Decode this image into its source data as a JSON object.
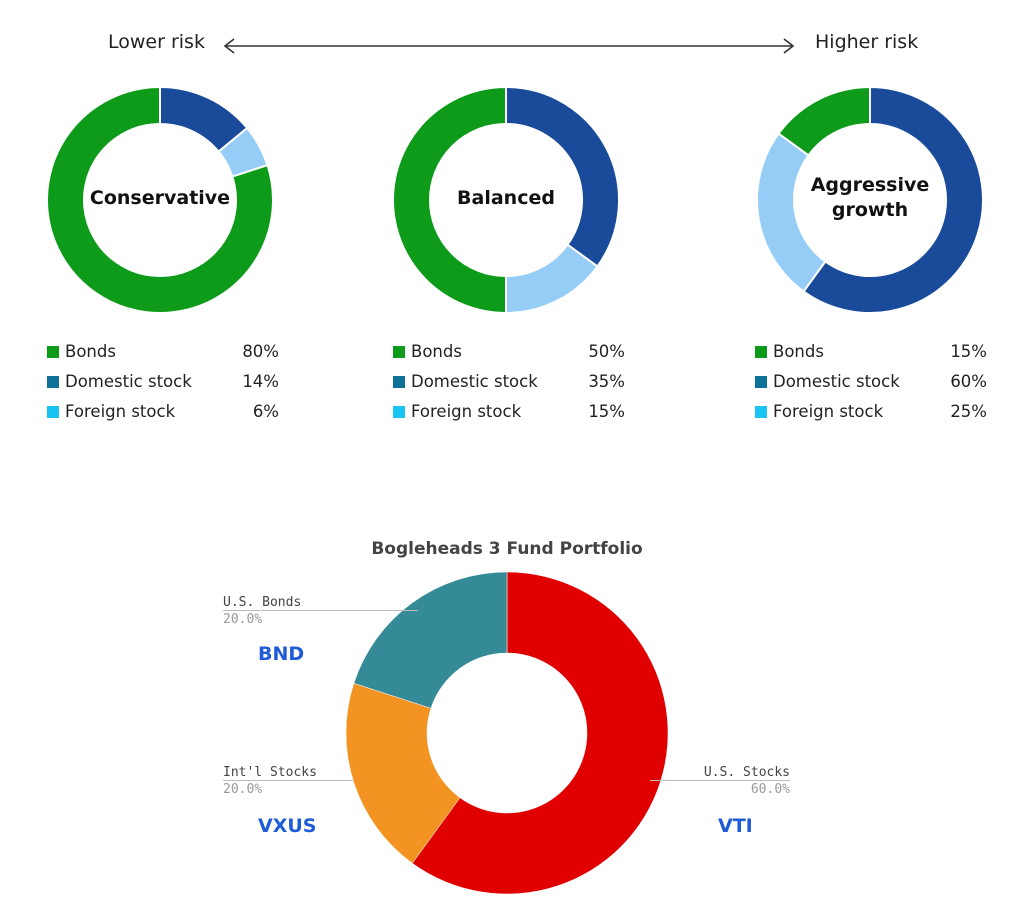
{
  "header": {
    "lower_risk": "Lower risk",
    "higher_risk": "Higher risk"
  },
  "colors": {
    "bonds": "#0f9b1a",
    "domestic": "#1a4b9b",
    "foreign": "#96cdf6",
    "legend_domestic": "#0e7197",
    "legend_foreign": "#19c3f2",
    "us_bonds": "#358a97",
    "intl_stocks": "#f39322",
    "us_stocks": "#e10000",
    "ticker": "#1e5bd6"
  },
  "chart_data": [
    {
      "type": "pie",
      "center_label": "Conservative",
      "categories": [
        "Bonds",
        "Domestic stock",
        "Foreign stock"
      ],
      "values": [
        80,
        14,
        6
      ],
      "value_labels": [
        "80%",
        "14%",
        "6%"
      ],
      "legend_position": "bottom"
    },
    {
      "type": "pie",
      "center_label": "Balanced",
      "categories": [
        "Bonds",
        "Domestic stock",
        "Foreign stock"
      ],
      "values": [
        50,
        35,
        15
      ],
      "value_labels": [
        "50%",
        "35%",
        "15%"
      ],
      "legend_position": "bottom"
    },
    {
      "type": "pie",
      "center_label": "Aggressive\ngrowth",
      "categories": [
        "Bonds",
        "Domestic stock",
        "Foreign stock"
      ],
      "values": [
        15,
        60,
        25
      ],
      "value_labels": [
        "15%",
        "60%",
        "25%"
      ],
      "legend_position": "bottom"
    },
    {
      "type": "pie",
      "title": "Bogleheads 3 Fund Portfolio",
      "categories": [
        "U.S. Stocks",
        "Int'l Stocks",
        "U.S. Bonds"
      ],
      "values": [
        60,
        20,
        20
      ],
      "value_labels": [
        "60.0%",
        "20.0%",
        "20.0%"
      ],
      "tickers": [
        "VTI",
        "VXUS",
        "BND"
      ]
    }
  ]
}
